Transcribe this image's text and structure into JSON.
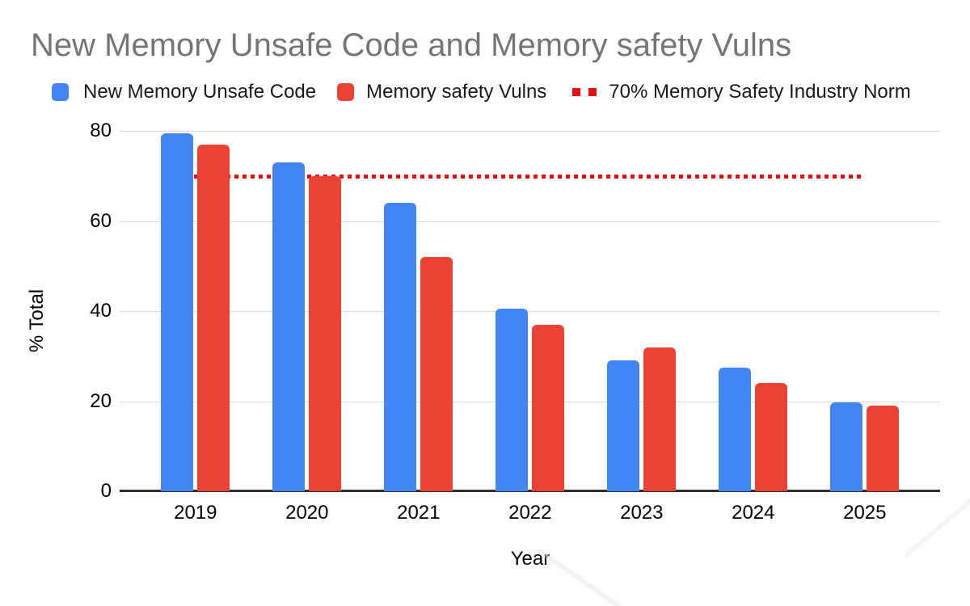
{
  "title": "New Memory Unsafe Code and Memory safety Vulns",
  "legend": {
    "series1_label": "New Memory Unsafe Code",
    "series2_label": "Memory safety Vulns",
    "norm_label": "70% Memory Safety Industry Norm"
  },
  "colors": {
    "series1_blue": "#4285F4",
    "series2_red": "#EA4335",
    "norm_line_red": "#EA0D0D",
    "title_gray": "#757575",
    "gridline_gray": "#D9D9D9",
    "axis_dark": "#2E2E2E"
  },
  "chart_data": {
    "type": "bar",
    "title": "New Memory Unsafe Code and Memory safety Vulns",
    "categories": [
      "2019",
      "2020",
      "2021",
      "2022",
      "2023",
      "2024",
      "2025"
    ],
    "series": [
      {
        "name": "New Memory Unsafe Code",
        "color": "#4285F4",
        "values": [
          79.5,
          73,
          64,
          40.5,
          29,
          27.5,
          19.7
        ]
      },
      {
        "name": "Memory safety Vulns",
        "color": "#EA4335",
        "values": [
          77,
          70,
          52,
          37,
          32,
          24,
          19
        ]
      }
    ],
    "reference_line": {
      "label": "70% Memory Safety Industry Norm",
      "value": 70,
      "style": "dotted",
      "color": "#EA0D0D"
    },
    "xlabel": "Year",
    "ylabel": "% Total",
    "ylim": [
      0,
      80
    ],
    "yticks": [
      0,
      20,
      40,
      60,
      80
    ],
    "legend_position": "top",
    "grid": "horizontal"
  }
}
